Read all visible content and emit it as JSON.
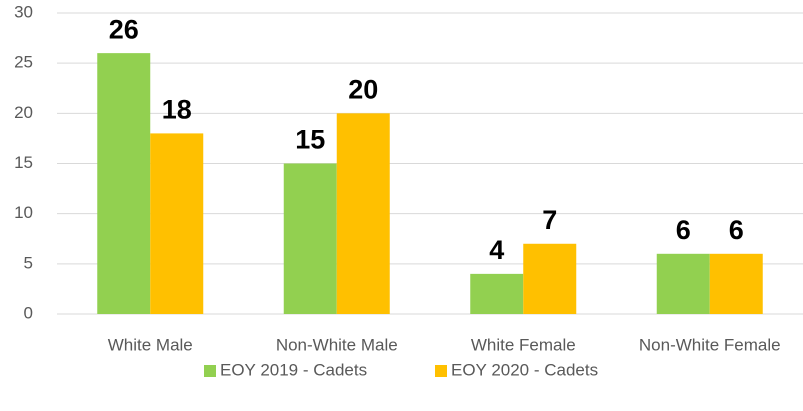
{
  "chart_data": {
    "type": "bar",
    "categories": [
      "White Male",
      "Non-White Male",
      "White Female",
      "Non-White Female"
    ],
    "series": [
      {
        "name": "EOY 2019 - Cadets",
        "color": "#92d050",
        "values": [
          26,
          15,
          4,
          6
        ]
      },
      {
        "name": "EOY 2020 - Cadets",
        "color": "#ffc000",
        "values": [
          18,
          20,
          7,
          6
        ]
      }
    ],
    "ylim": [
      0,
      30
    ],
    "yticks": [
      0,
      5,
      10,
      15,
      20,
      25,
      30
    ],
    "grid": true,
    "legend": "bottom"
  }
}
